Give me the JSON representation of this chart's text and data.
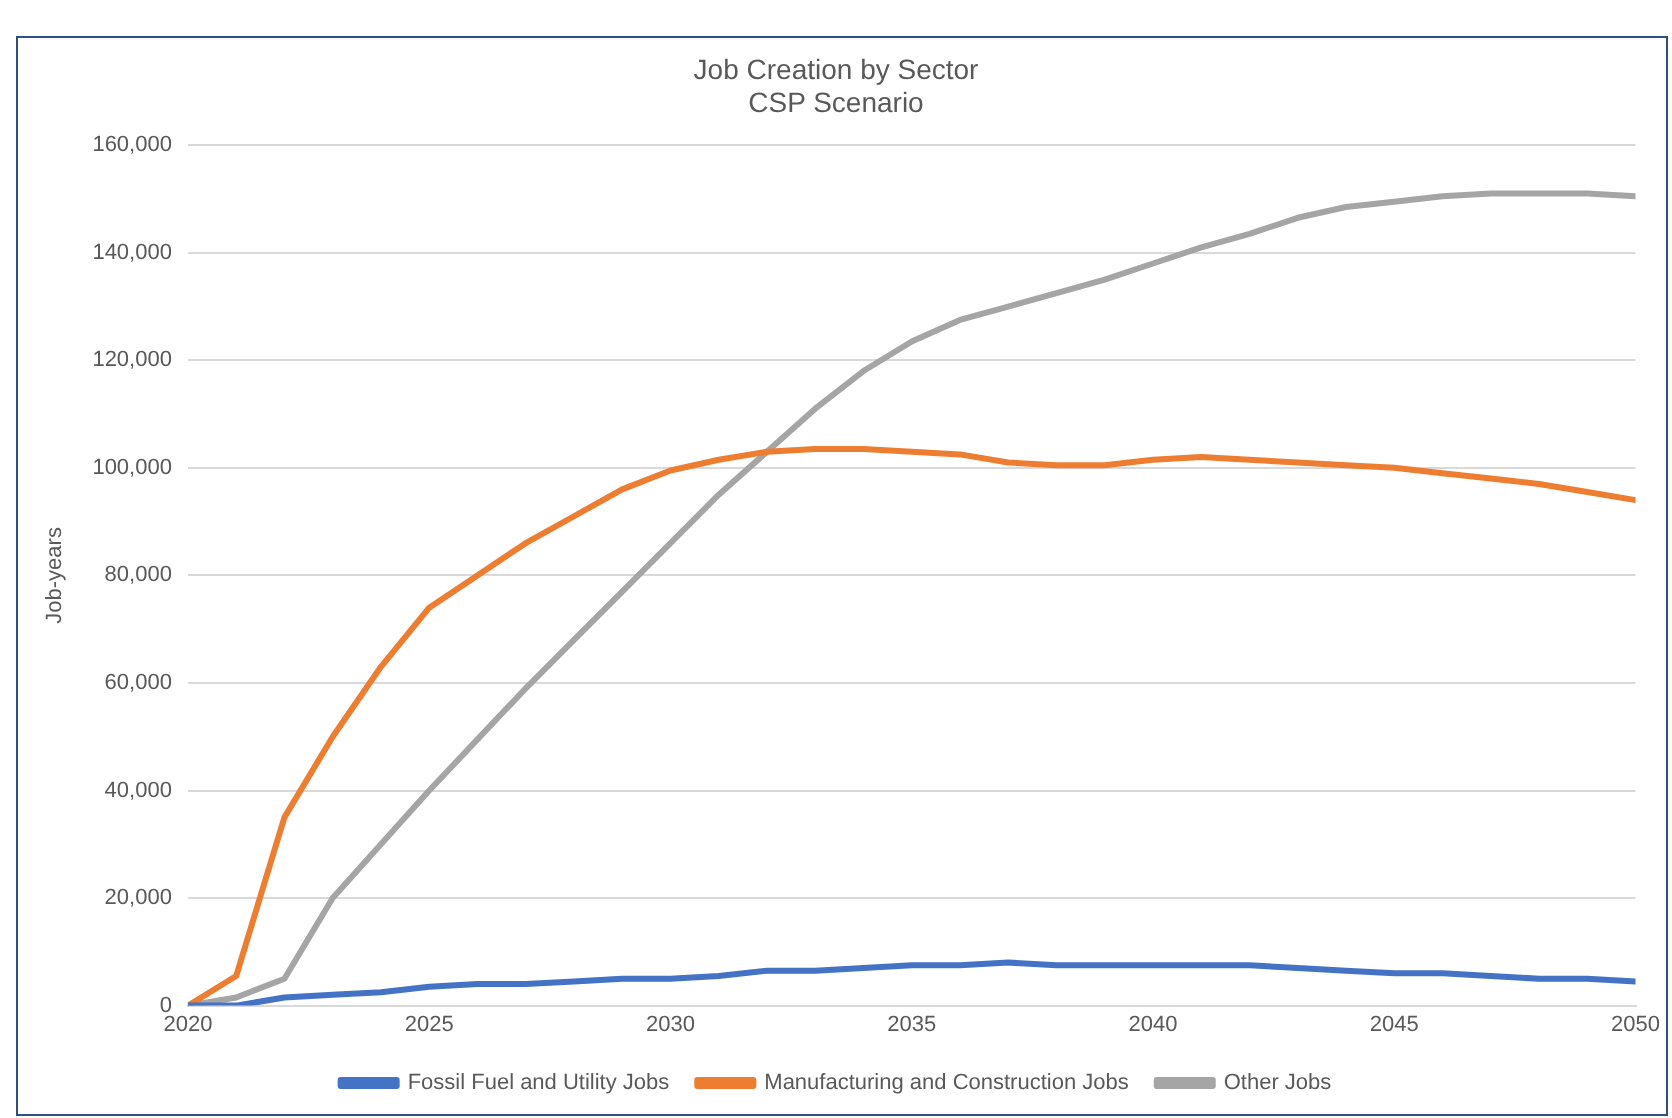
{
  "chart_data": {
    "type": "line",
    "title": "Job Creation by Sector",
    "subtitle": "CSP Scenario",
    "ylabel": "Job-years",
    "x": [
      2020,
      2021,
      2022,
      2023,
      2024,
      2025,
      2026,
      2027,
      2028,
      2029,
      2030,
      2031,
      2032,
      2033,
      2034,
      2035,
      2036,
      2037,
      2038,
      2039,
      2040,
      2041,
      2042,
      2043,
      2044,
      2045,
      2046,
      2047,
      2048,
      2049,
      2050
    ],
    "series": [
      {
        "name": "Fossil Fuel and Utility Jobs",
        "color": "#4472c4",
        "values": [
          0,
          0,
          1500,
          2000,
          2500,
          3500,
          4000,
          4000,
          4500,
          5000,
          5000,
          5500,
          6500,
          6500,
          7000,
          7500,
          7500,
          8000,
          7500,
          7500,
          7500,
          7500,
          7500,
          7000,
          6500,
          6000,
          6000,
          5500,
          5000,
          5000,
          4500
        ]
      },
      {
        "name": "Manufacturing and Construction Jobs",
        "color": "#ed7d31",
        "values": [
          0,
          5500,
          35000,
          50000,
          63000,
          74000,
          80000,
          86000,
          91000,
          96000,
          99500,
          101500,
          103000,
          103500,
          103500,
          103000,
          102500,
          101000,
          100500,
          100500,
          101500,
          102000,
          101500,
          101000,
          100500,
          100000,
          99000,
          98000,
          97000,
          95500,
          94000
        ]
      },
      {
        "name": "Other Jobs",
        "color": "#a5a5a5",
        "values": [
          0,
          1500,
          5000,
          20000,
          30000,
          40000,
          49500,
          59000,
          68000,
          77000,
          86000,
          95000,
          103000,
          111000,
          118000,
          123500,
          127500,
          130000,
          132500,
          135000,
          138000,
          141000,
          143500,
          146500,
          148500,
          149500,
          150500,
          151000,
          151000,
          151000,
          150500
        ]
      }
    ],
    "xlim": [
      2020,
      2050
    ],
    "xticks": [
      2020,
      2025,
      2030,
      2035,
      2040,
      2045,
      2050
    ],
    "ylim": [
      0,
      160000
    ],
    "yticks": [
      0,
      {
        "value": 20000,
        "label": "20,000"
      },
      {
        "value": 40000,
        "label": "40,000"
      },
      {
        "value": 60000,
        "label": "60,000"
      },
      {
        "value": 80000,
        "label": "80,000"
      },
      {
        "value": 100000,
        "label": "100,000"
      },
      {
        "value": 120000,
        "label": "120,000"
      },
      {
        "value": 140000,
        "label": "140,000"
      },
      {
        "value": 160000,
        "label": "160,000"
      }
    ],
    "grid": "y",
    "legend": "bottom",
    "marker": "none",
    "line_style": "solid"
  }
}
